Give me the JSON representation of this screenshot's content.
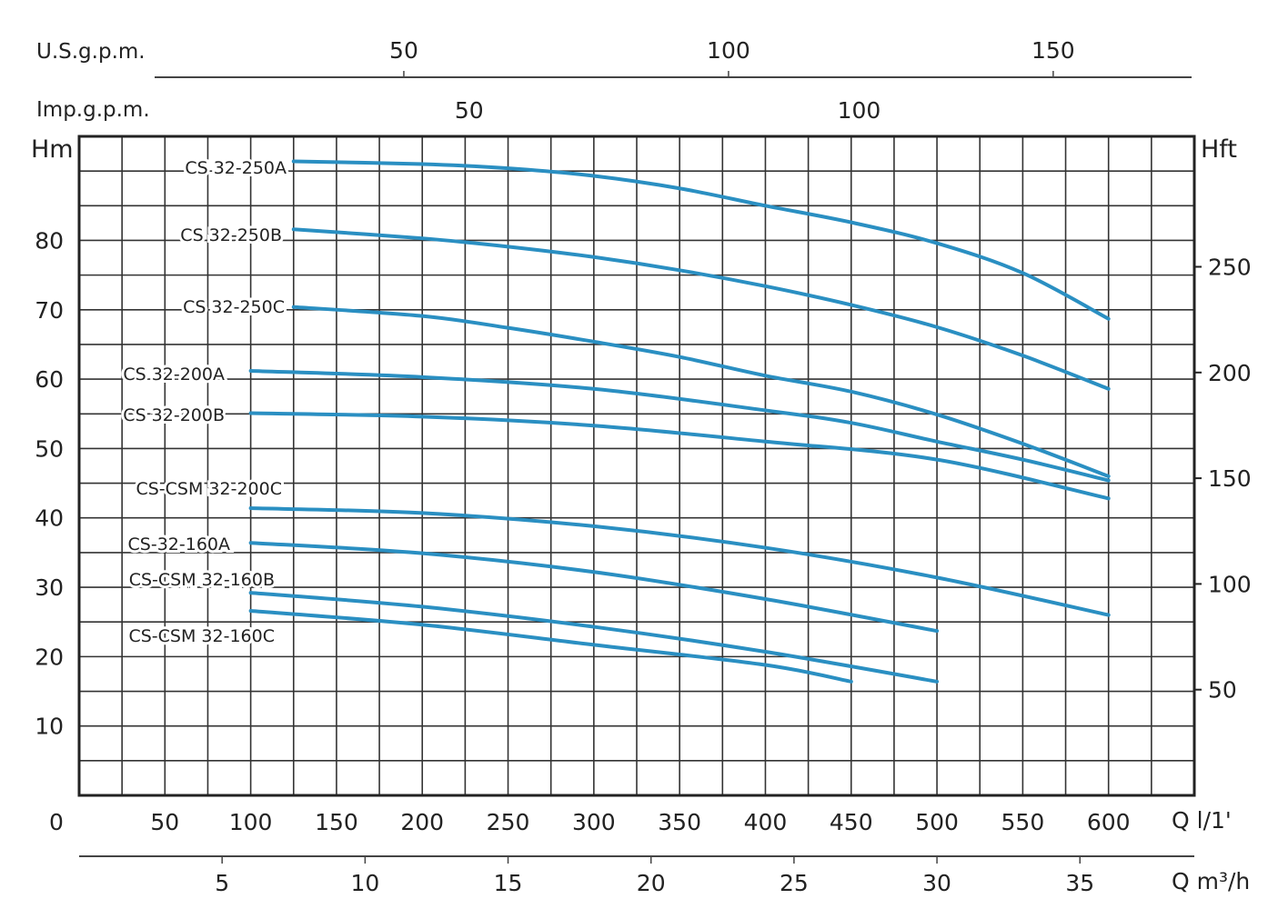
{
  "chart_data": {
    "type": "line",
    "title": "",
    "xlabel": "Q l/1'",
    "ylabel": "Hm",
    "y2label": "Hft",
    "x_top1_label": "U.S.g.p.m.",
    "x_top2_label": "Imp.g.p.m.",
    "x_bottom2_label": "Q m³/h",
    "xlim": [
      0,
      650
    ],
    "ylim": [
      0,
      95
    ],
    "grid": true,
    "line_color": "#2a8fc2",
    "x_ticks": [
      "0",
      "50",
      "100",
      "150",
      "200",
      "250",
      "300",
      "350",
      "400",
      "450",
      "500",
      "550",
      "600"
    ],
    "y_ticks": [
      "10",
      "20",
      "30",
      "40",
      "50",
      "60",
      "70",
      "80"
    ],
    "y2_ticks": [
      "50",
      "100",
      "150",
      "200",
      "250"
    ],
    "m3h_ticks": [
      "5",
      "10",
      "15",
      "20",
      "25",
      "30",
      "35"
    ],
    "usgpm_ticks": [
      "50",
      "100",
      "150"
    ],
    "impgpm_ticks": [
      "50",
      "100"
    ],
    "series": [
      {
        "name": "CS 32-250A",
        "x": [
          125,
          200,
          250,
          300,
          350,
          400,
          450,
          500,
          550,
          600
        ],
        "y": [
          91.4,
          91,
          90.4,
          89.3,
          87.5,
          85,
          82.6,
          79.6,
          75.3,
          68.7
        ]
      },
      {
        "name": "CS 32-250B",
        "x": [
          125,
          200,
          250,
          300,
          350,
          400,
          450,
          500,
          550,
          600
        ],
        "y": [
          81.6,
          80.3,
          79.1,
          77.6,
          75.7,
          73.4,
          70.7,
          67.5,
          63.4,
          58.6
        ]
      },
      {
        "name": "CS 32-250C",
        "x": [
          125,
          200,
          250,
          300,
          350,
          400,
          450,
          500,
          550,
          600
        ],
        "y": [
          70.4,
          69.1,
          67.4,
          65.4,
          63.2,
          60.5,
          58.2,
          54.9,
          50.7,
          46
        ]
      },
      {
        "name": "CS 32-200A",
        "x": [
          100,
          200,
          300,
          400,
          450,
          500,
          550,
          600
        ],
        "y": [
          61.2,
          60.3,
          58.6,
          55.5,
          53.7,
          51,
          48.4,
          45.4
        ]
      },
      {
        "name": "CS 32-200B",
        "x": [
          100,
          200,
          300,
          400,
          500,
          600
        ],
        "y": [
          55.1,
          54.6,
          53.3,
          51,
          48.4,
          42.8
        ]
      },
      {
        "name": "CS-CSM 32-200C",
        "x": [
          100,
          200,
          300,
          400,
          500,
          600
        ],
        "y": [
          41.4,
          40.7,
          38.8,
          35.7,
          31.4,
          26
        ]
      },
      {
        "name": "CS-32-160A",
        "x": [
          100,
          200,
          300,
          400,
          500
        ],
        "y": [
          36.4,
          34.9,
          32.2,
          28.3,
          23.7
        ]
      },
      {
        "name": "CS-CSM 32-160B",
        "x": [
          100,
          200,
          300,
          400,
          500
        ],
        "y": [
          29.2,
          27.2,
          24.3,
          20.7,
          16.4
        ]
      },
      {
        "name": "CS-CSM 32-160C",
        "x": [
          100,
          200,
          300,
          400,
          450
        ],
        "y": [
          26.6,
          24.6,
          21.7,
          18.8,
          16.4
        ]
      }
    ]
  }
}
